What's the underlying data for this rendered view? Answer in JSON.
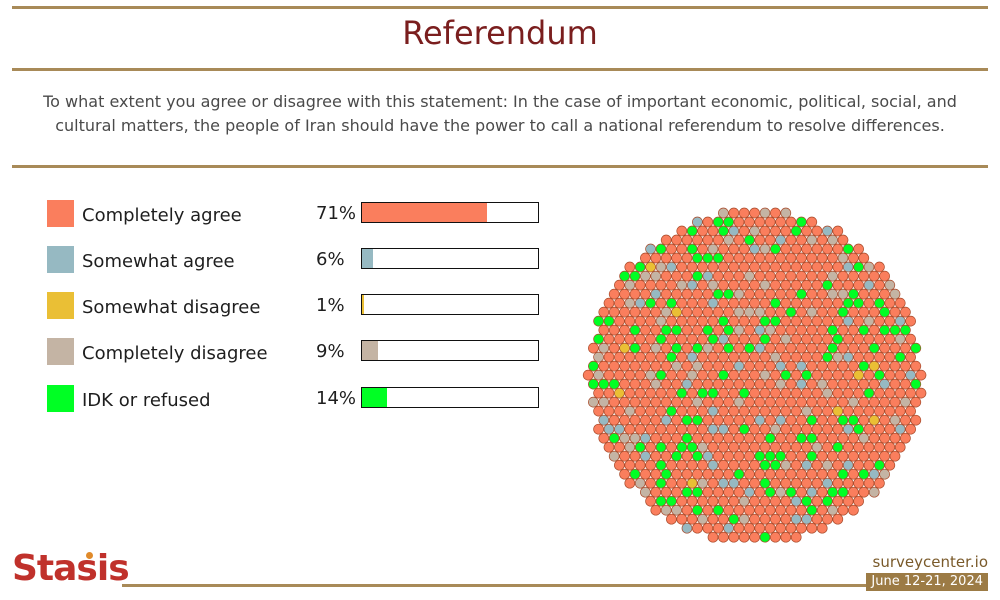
{
  "header": {
    "title": "Referendum",
    "question": "To what extent you agree or disagree with this statement: In the case of important economic, political, social, and cultural matters, the people of Iran should have the power to call a national referendum to resolve differences."
  },
  "chart_data": {
    "type": "bar",
    "categories": [
      "Completely agree",
      "Somewhat agree",
      "Somewhat disagree",
      "Completely disagree",
      "IDK or refused"
    ],
    "values": [
      71,
      6,
      1,
      9,
      14
    ],
    "value_labels": [
      "71%",
      "6%",
      "1%",
      "9%",
      "14%"
    ],
    "colors": [
      "#fa7e5d",
      "#96b9c2",
      "#eabf35",
      "#c4b4a4",
      "#00ff24"
    ],
    "unit": "%",
    "xlim": [
      0,
      100
    ],
    "legend": "left",
    "extra_visual": "dot cluster showing composition of responses"
  },
  "footer": {
    "brand": "Stasis",
    "site": "surveycenter.io",
    "date": "June 12-21, 2024"
  },
  "colors": {
    "title": "#7a1e1e",
    "rule": "#a88a58",
    "dot_outline": "#a84a2a"
  }
}
